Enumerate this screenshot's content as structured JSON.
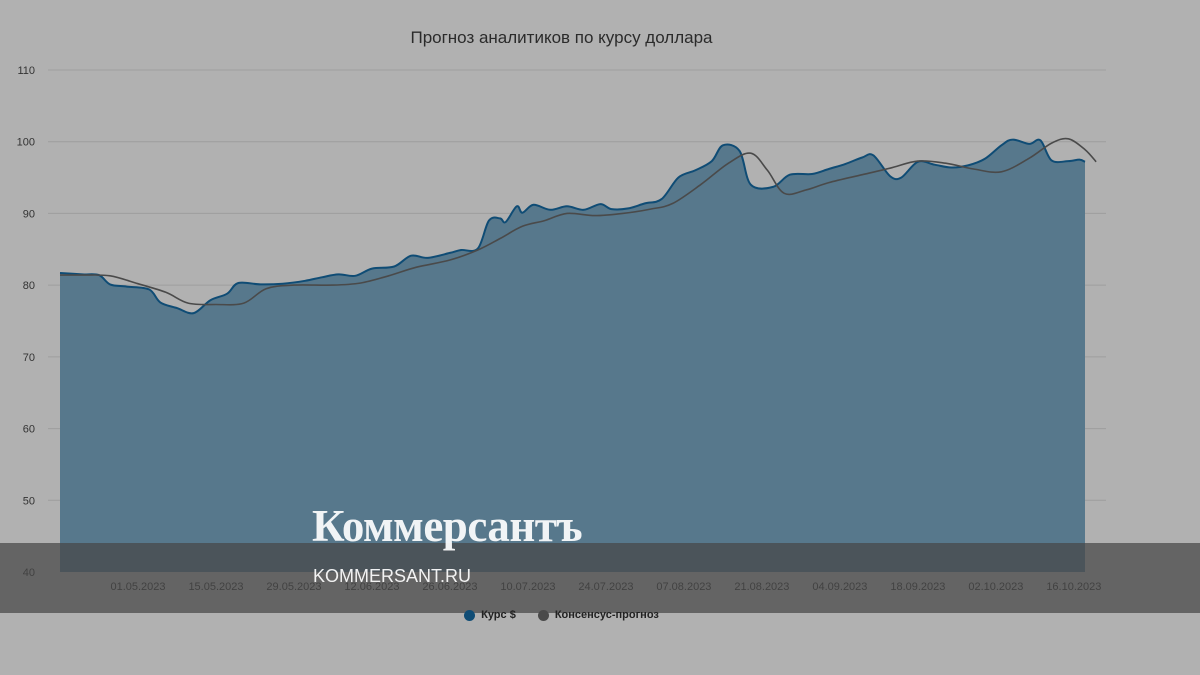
{
  "chart_data": {
    "type": "area",
    "title": "Прогноз аналитиков по курсу доллара",
    "xlabel": "",
    "ylabel": "",
    "ylim": [
      40,
      110
    ],
    "yticks": [
      40,
      50,
      60,
      70,
      80,
      90,
      100,
      110
    ],
    "xlim": [
      "2023-04-17",
      "2023-10-18"
    ],
    "xticks": [
      "01.05.2023",
      "15.05.2023",
      "29.05.2023",
      "12.06.2023",
      "26.06.2023",
      "10.07.2023",
      "24.07.2023",
      "07.08.2023",
      "21.08.2023",
      "04.09.2023",
      "18.09.2023",
      "02.10.2023",
      "16.10.2023"
    ],
    "grid": true,
    "legend_position": "bottom-center",
    "colors": {
      "rate": "#0f4c75",
      "consensus": "#4a4a4a",
      "area": "#57788c"
    },
    "series": [
      {
        "name": "Курс $",
        "points": [
          [
            "2023-04-17",
            81.7
          ],
          [
            "2023-04-21",
            81.5
          ],
          [
            "2023-04-24",
            81.4
          ],
          [
            "2023-04-26",
            80.1
          ],
          [
            "2023-04-29",
            79.8
          ],
          [
            "2023-05-03",
            79.4
          ],
          [
            "2023-05-05",
            77.6
          ],
          [
            "2023-05-08",
            76.8
          ],
          [
            "2023-05-11",
            76.1
          ],
          [
            "2023-05-14",
            77.9
          ],
          [
            "2023-05-17",
            78.8
          ],
          [
            "2023-05-19",
            80.3
          ],
          [
            "2023-05-23",
            80.1
          ],
          [
            "2023-05-27",
            80.2
          ],
          [
            "2023-05-31",
            80.6
          ],
          [
            "2023-06-03",
            81.1
          ],
          [
            "2023-06-06",
            81.5
          ],
          [
            "2023-06-09",
            81.3
          ],
          [
            "2023-06-12",
            82.3
          ],
          [
            "2023-06-16",
            82.6
          ],
          [
            "2023-06-19",
            84.1
          ],
          [
            "2023-06-22",
            83.8
          ],
          [
            "2023-06-26",
            84.5
          ],
          [
            "2023-06-28",
            84.9
          ],
          [
            "2023-07-01",
            85.1
          ],
          [
            "2023-07-03",
            89.0
          ],
          [
            "2023-07-05",
            89.3
          ],
          [
            "2023-07-06",
            88.8
          ],
          [
            "2023-07-08",
            91.0
          ],
          [
            "2023-07-09",
            90.1
          ],
          [
            "2023-07-11",
            91.2
          ],
          [
            "2023-07-14",
            90.5
          ],
          [
            "2023-07-17",
            91.0
          ],
          [
            "2023-07-20",
            90.5
          ],
          [
            "2023-07-23",
            91.3
          ],
          [
            "2023-07-25",
            90.6
          ],
          [
            "2023-07-28",
            90.7
          ],
          [
            "2023-07-31",
            91.4
          ],
          [
            "2023-08-03",
            92.0
          ],
          [
            "2023-08-06",
            95.0
          ],
          [
            "2023-08-09",
            96.0
          ],
          [
            "2023-08-12",
            97.3
          ],
          [
            "2023-08-14",
            99.5
          ],
          [
            "2023-08-17",
            98.7
          ],
          [
            "2023-08-19",
            94.0
          ],
          [
            "2023-08-23",
            93.7
          ],
          [
            "2023-08-26",
            95.4
          ],
          [
            "2023-08-30",
            95.5
          ],
          [
            "2023-09-02",
            96.2
          ],
          [
            "2023-09-05",
            96.9
          ],
          [
            "2023-09-08",
            97.8
          ],
          [
            "2023-09-10",
            98.1
          ],
          [
            "2023-09-13",
            95.2
          ],
          [
            "2023-09-15",
            95.0
          ],
          [
            "2023-09-18",
            97.2
          ],
          [
            "2023-09-21",
            96.8
          ],
          [
            "2023-09-24",
            96.4
          ],
          [
            "2023-09-27",
            96.7
          ],
          [
            "2023-09-30",
            97.6
          ],
          [
            "2023-10-03",
            99.5
          ],
          [
            "2023-10-05",
            100.3
          ],
          [
            "2023-10-08",
            99.7
          ],
          [
            "2023-10-10",
            100.2
          ],
          [
            "2023-10-12",
            97.4
          ],
          [
            "2023-10-15",
            97.3
          ],
          [
            "2023-10-17",
            97.5
          ],
          [
            "2023-10-18",
            97.2
          ]
        ]
      },
      {
        "name": "Консенсус-прогноз",
        "points": [
          [
            "2023-04-17",
            81.4
          ],
          [
            "2023-04-21",
            81.4
          ],
          [
            "2023-04-26",
            81.3
          ],
          [
            "2023-05-01",
            80.2
          ],
          [
            "2023-05-06",
            79.0
          ],
          [
            "2023-05-10",
            77.5
          ],
          [
            "2023-05-15",
            77.3
          ],
          [
            "2023-05-20",
            77.5
          ],
          [
            "2023-05-24",
            79.5
          ],
          [
            "2023-05-29",
            80.0
          ],
          [
            "2023-06-05",
            80.0
          ],
          [
            "2023-06-10",
            80.3
          ],
          [
            "2023-06-15",
            81.3
          ],
          [
            "2023-06-20",
            82.5
          ],
          [
            "2023-06-26",
            83.5
          ],
          [
            "2023-07-01",
            84.9
          ],
          [
            "2023-07-05",
            86.5
          ],
          [
            "2023-07-09",
            88.2
          ],
          [
            "2023-07-13",
            89.0
          ],
          [
            "2023-07-17",
            90.0
          ],
          [
            "2023-07-22",
            89.7
          ],
          [
            "2023-07-27",
            90.0
          ],
          [
            "2023-08-01",
            90.6
          ],
          [
            "2023-08-05",
            91.4
          ],
          [
            "2023-08-10",
            94.0
          ],
          [
            "2023-08-15",
            97.0
          ],
          [
            "2023-08-19",
            98.4
          ],
          [
            "2023-08-22",
            96.0
          ],
          [
            "2023-08-25",
            92.8
          ],
          [
            "2023-08-29",
            93.3
          ],
          [
            "2023-09-02",
            94.3
          ],
          [
            "2023-09-08",
            95.4
          ],
          [
            "2023-09-13",
            96.3
          ],
          [
            "2023-09-18",
            97.3
          ],
          [
            "2023-09-23",
            97.0
          ],
          [
            "2023-09-28",
            96.2
          ],
          [
            "2023-10-03",
            95.8
          ],
          [
            "2023-10-08",
            97.7
          ],
          [
            "2023-10-12",
            99.8
          ],
          [
            "2023-10-15",
            100.4
          ],
          [
            "2023-10-18",
            98.9
          ],
          [
            "2023-10-20",
            97.2
          ]
        ]
      }
    ]
  },
  "watermark": {
    "logo": "Коммерсантъ",
    "url": "KOMMERSANT.RU"
  }
}
